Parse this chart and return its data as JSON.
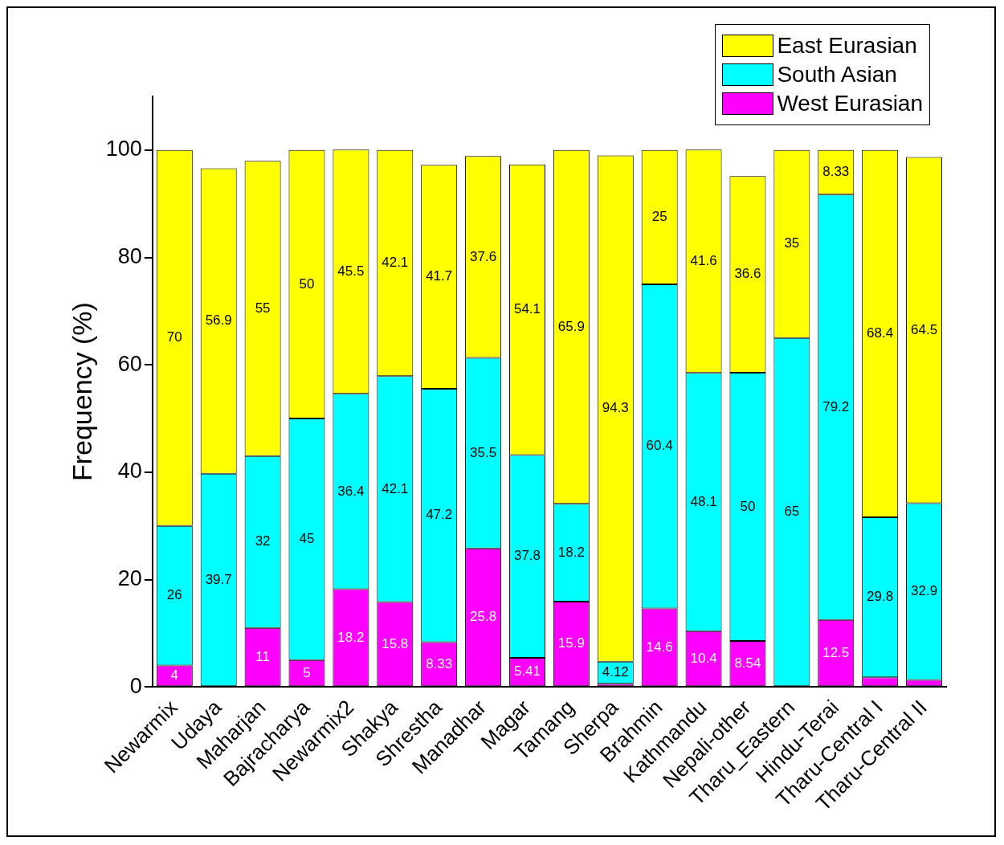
{
  "chart_data": {
    "type": "bar",
    "stacked": true,
    "ylabel": "Frequency (%)",
    "categories": [
      "Newarmix",
      "Udaya",
      "Maharjan",
      "Bajracharya",
      "Newarmix2",
      "Shakya",
      "Shrestha",
      "Manadhar",
      "Magar",
      "Tamang",
      "Sherpa",
      "Brahmin",
      "Kathmandu",
      "Nepali-other",
      "Tharu_Eastern",
      "Hindu-Terai",
      "Tharu-Central I",
      "Tharu-Central II"
    ],
    "ylim": [
      0,
      110
    ],
    "yticks": [
      0,
      20,
      40,
      60,
      80,
      100
    ],
    "grid": false,
    "legend": "top right",
    "series": [
      {
        "name": "West Eurasian",
        "color": "#ff00ff",
        "values": [
          4,
          0,
          11,
          5,
          18.2,
          15.8,
          8.33,
          25.8,
          5.41,
          15.9,
          0.6,
          14.6,
          10.4,
          8.54,
          0,
          12.5,
          1.8,
          1.3
        ],
        "value_labels": [
          "4",
          null,
          "11",
          "5",
          "18.2",
          "15.8",
          "8.33",
          "25.8",
          "5.41",
          "15.9",
          null,
          "14.6",
          "10.4",
          "8.54",
          null,
          "12.5",
          null,
          null
        ]
      },
      {
        "name": "South Asian",
        "color": "#00ffff",
        "values": [
          26,
          39.7,
          32,
          45,
          36.4,
          42.1,
          47.2,
          35.5,
          37.8,
          18.2,
          4.12,
          60.4,
          48.1,
          50,
          65,
          79.2,
          29.8,
          32.9
        ],
        "value_labels": [
          "26",
          "39.7",
          "32",
          "45",
          "36.4",
          "42.1",
          "47.2",
          "35.5",
          "37.8",
          "18.2",
          "4.12",
          "60.4",
          "48.1",
          "50",
          "65",
          "79.2",
          "29.8",
          "32.9"
        ]
      },
      {
        "name": "East Eurasian",
        "color": "#ffff00",
        "values": [
          70,
          56.9,
          55,
          50,
          45.5,
          42.1,
          41.7,
          37.6,
          54.1,
          65.9,
          94.3,
          25,
          41.6,
          36.6,
          35,
          8.33,
          68.4,
          64.5
        ],
        "value_labels": [
          "70",
          "56.9",
          "55",
          "50",
          "45.5",
          "42.1",
          "41.7",
          "37.6",
          "54.1",
          "65.9",
          "94.3",
          "25",
          "41.6",
          "36.6",
          "35",
          "8.33",
          "68.4",
          "64.5"
        ]
      }
    ]
  }
}
